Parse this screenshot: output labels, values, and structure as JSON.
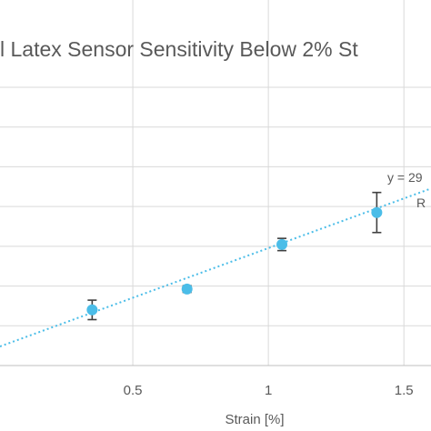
{
  "chart_data": {
    "type": "scatter",
    "title": "l Latex Sensor Sensitivity Below 2% St",
    "xlabel": "Strain [%]",
    "ylabel": "",
    "xlim": [
      0.01,
      1.6
    ],
    "ylim": [
      0,
      100
    ],
    "x_ticks": [
      0.5,
      1,
      1.5
    ],
    "x_tick_labels": [
      "0.5",
      "1",
      "1.5"
    ],
    "grid": true,
    "series": [
      {
        "color": "#4bbde8",
        "points": [
          {
            "x": 0.35,
            "y": 20.0,
            "err": 3.5
          },
          {
            "x": 0.7,
            "y": 27.5,
            "err": 1.2
          },
          {
            "x": 1.05,
            "y": 43.5,
            "err": 2.2
          },
          {
            "x": 1.4,
            "y": 55.0,
            "err": 7.2
          }
        ]
      }
    ],
    "trendline": {
      "type": "linear",
      "color": "#4bbde8",
      "slope": 35.7,
      "intercept": 6.5,
      "equation_label": "y = 29",
      "r2_label": "R"
    }
  }
}
